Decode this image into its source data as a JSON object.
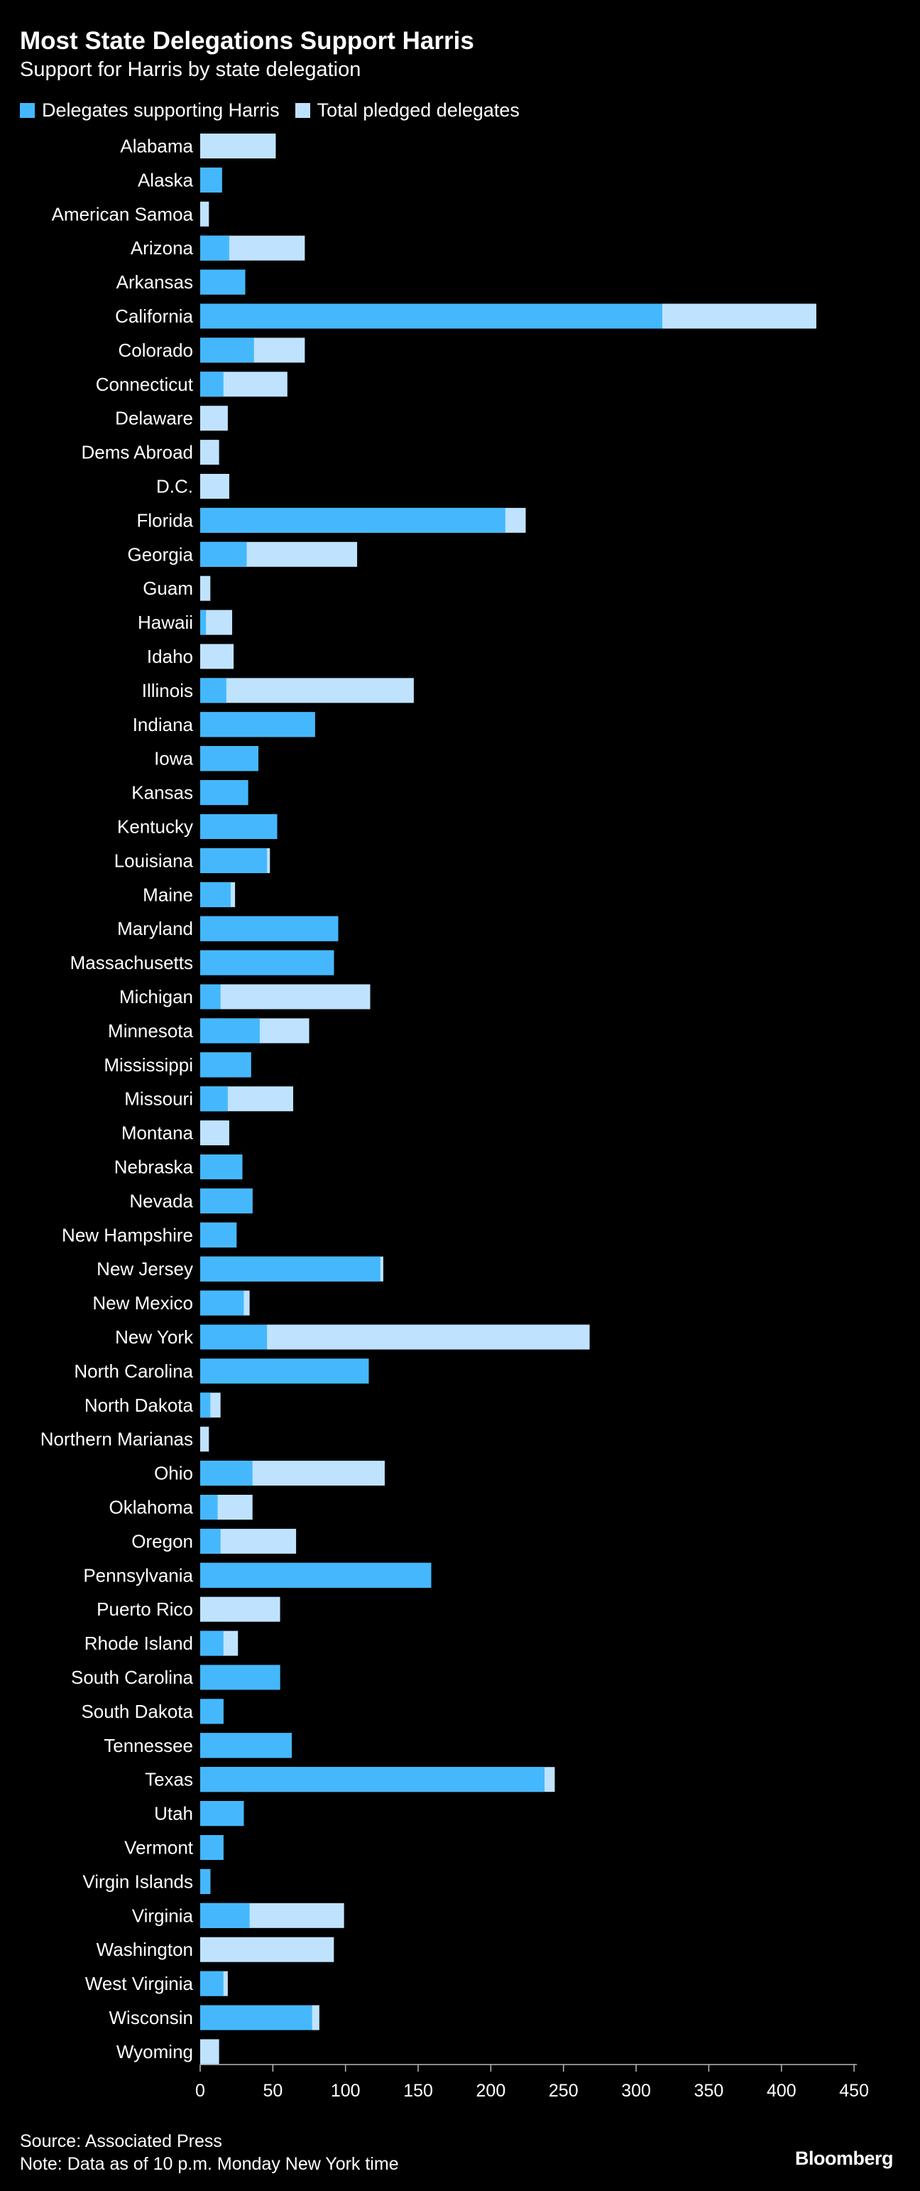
{
  "header": {
    "title": "Most State Delegations Support Harris",
    "subtitle": "Support for Harris by state delegation"
  },
  "legend": {
    "supporting_label": "Delegates supporting Harris",
    "total_label": "Total pledged delegates"
  },
  "colors": {
    "supporting": "#45b8fd",
    "total": "#bfe3ff",
    "background": "#000000",
    "axis": "#bbbbbb"
  },
  "footer": {
    "source": "Source: Associated Press",
    "note": "Note: Data as of 10 p.m. Monday New York time",
    "brand": "Bloomberg"
  },
  "chart_data": {
    "type": "bar",
    "orientation": "horizontal",
    "title": "Most State Delegations Support Harris",
    "subtitle": "Support for Harris by state delegation",
    "xlabel": "",
    "ylabel": "",
    "xlim": [
      0,
      450
    ],
    "xticks": [
      0,
      50,
      100,
      150,
      200,
      250,
      300,
      350,
      400,
      450
    ],
    "grid": false,
    "legend_position": "top-left",
    "categories": [
      "Alabama",
      "Alaska",
      "American Samoa",
      "Arizona",
      "Arkansas",
      "California",
      "Colorado",
      "Connecticut",
      "Delaware",
      "Dems Abroad",
      "D.C.",
      "Florida",
      "Georgia",
      "Guam",
      "Hawaii",
      "Idaho",
      "Illinois",
      "Indiana",
      "Iowa",
      "Kansas",
      "Kentucky",
      "Louisiana",
      "Maine",
      "Maryland",
      "Massachusetts",
      "Michigan",
      "Minnesota",
      "Mississippi",
      "Missouri",
      "Montana",
      "Nebraska",
      "Nevada",
      "New Hampshire",
      "New Jersey",
      "New Mexico",
      "New York",
      "North Carolina",
      "North Dakota",
      "Northern Marianas",
      "Ohio",
      "Oklahoma",
      "Oregon",
      "Pennsylvania",
      "Puerto Rico",
      "Rhode Island",
      "South Carolina",
      "South Dakota",
      "Tennessee",
      "Texas",
      "Utah",
      "Vermont",
      "Virgin Islands",
      "Virginia",
      "Washington",
      "West Virginia",
      "Wisconsin",
      "Wyoming"
    ],
    "series": [
      {
        "name": "Delegates supporting Harris",
        "values": [
          0,
          15,
          0,
          20,
          31,
          318,
          37,
          16,
          0,
          0,
          0,
          210,
          32,
          0,
          4,
          0,
          18,
          79,
          40,
          33,
          53,
          46,
          21,
          95,
          92,
          14,
          41,
          35,
          19,
          0,
          29,
          36,
          25,
          124,
          30,
          46,
          116,
          7,
          0,
          36,
          12,
          14,
          159,
          0,
          16,
          55,
          16,
          63,
          237,
          30,
          16,
          7,
          34,
          0,
          16,
          77,
          0
        ]
      },
      {
        "name": "Total pledged delegates",
        "values": [
          52,
          15,
          6,
          72,
          31,
          424,
          72,
          60,
          19,
          13,
          20,
          224,
          108,
          7,
          22,
          23,
          147,
          79,
          40,
          33,
          53,
          48,
          24,
          95,
          92,
          117,
          75,
          35,
          64,
          20,
          29,
          36,
          25,
          126,
          34,
          268,
          116,
          14,
          6,
          127,
          36,
          66,
          159,
          55,
          26,
          55,
          16,
          63,
          244,
          30,
          16,
          7,
          99,
          92,
          19,
          82,
          13
        ]
      }
    ]
  }
}
